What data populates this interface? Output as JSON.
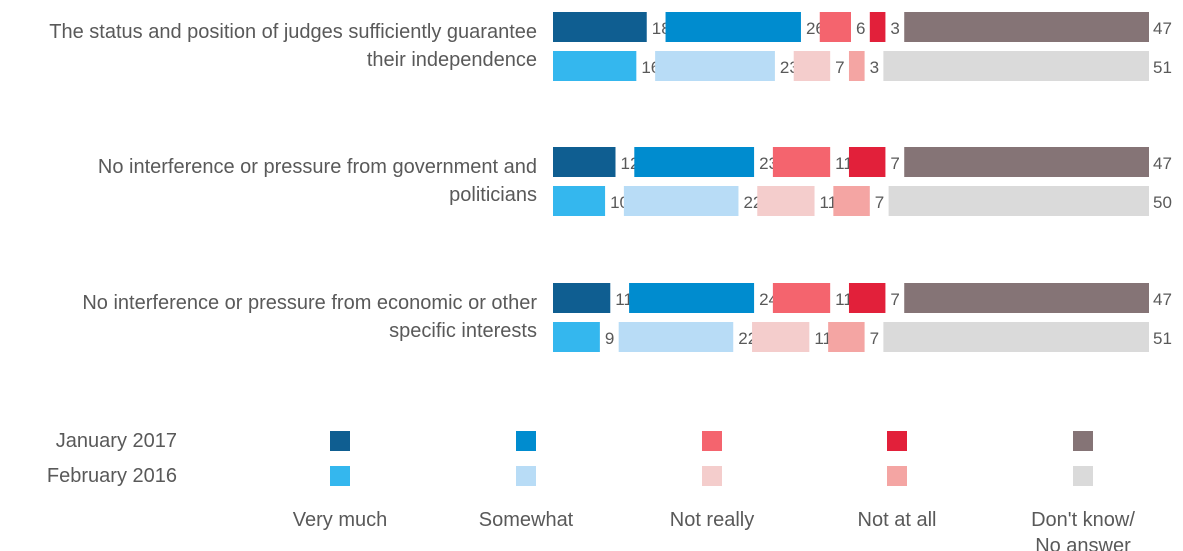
{
  "chart_data": {
    "type": "bar",
    "layout": "stacked-horizontal-split",
    "title": "",
    "xlabel": "",
    "ylabel": "",
    "xlim": [
      0,
      100
    ],
    "categories": [
      [
        "The status and position of judges sufficiently guarantee",
        "their independence"
      ],
      [
        "No interference or pressure from government and",
        "politicians"
      ],
      [
        "No interference or pressure from economic or other",
        "specific interests"
      ]
    ],
    "periods": [
      "January 2017",
      "February 2016"
    ],
    "answers": [
      "Very much",
      "Somewhat",
      "Not really",
      "Not at all",
      "Don't know/ No answer"
    ],
    "answer_label_lines": [
      [
        "Very much"
      ],
      [
        "Somewhat"
      ],
      [
        "Not really"
      ],
      [
        "Not at all"
      ],
      [
        "Don't know/",
        "No answer"
      ]
    ],
    "series": [
      {
        "name": "January 2017",
        "values": [
          [
            18,
            26,
            6,
            3,
            47
          ],
          [
            12,
            23,
            11,
            7,
            47
          ],
          [
            11,
            24,
            11,
            7,
            47
          ]
        ]
      },
      {
        "name": "February 2016",
        "values": [
          [
            16,
            23,
            7,
            3,
            51
          ],
          [
            10,
            22,
            11,
            7,
            50
          ],
          [
            9,
            22,
            11,
            7,
            51
          ]
        ]
      }
    ],
    "colors": {
      "January 2017": [
        "#0F5E91",
        "#008CCF",
        "#F4646E",
        "#E2203A",
        "#857476"
      ],
      "February 2016": [
        "#34B7EE",
        "#B8DCF6",
        "#F4CDCC",
        "#F4A5A3",
        "#DADADA"
      ]
    },
    "legend_position": "bottom",
    "grid": false
  }
}
